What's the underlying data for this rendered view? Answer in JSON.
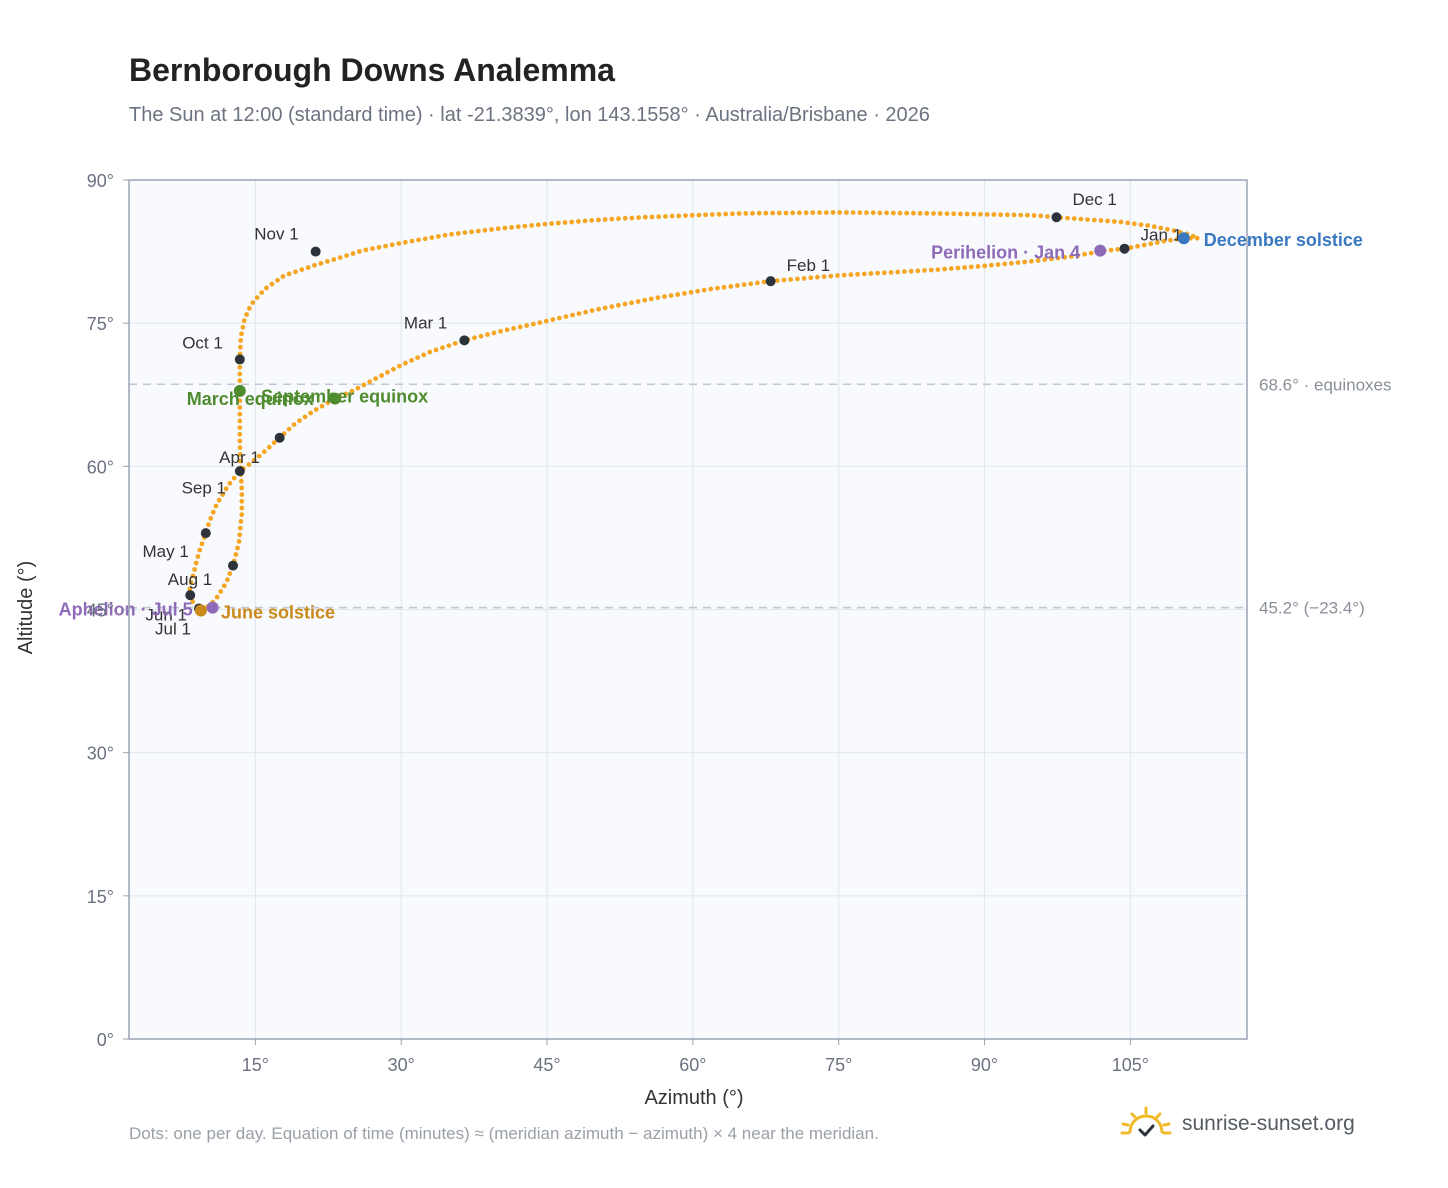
{
  "title": "Bernborough Downs Analemma",
  "subtitle": "The Sun at 12:00 (standard time) · lat -21.3839°, lon 143.1558° · Australia/Brisbane · 2026",
  "footnote": "Dots: one per day. Equation of time (minutes) ≈ (meridian azimuth − azimuth) × 4 near the meridian.",
  "brand": {
    "text": "sunrise-sunset.org",
    "icon": "sun-check-icon",
    "color": "#f0b928"
  },
  "colors": {
    "path": "#f5a623",
    "month_marker": "#2d333b",
    "equinox": "#4e8c2f",
    "june_solstice": "#c98a1a",
    "december_solstice": "#3a78c0",
    "apsis": "#8e6bb8",
    "grid": "#e3e8ee",
    "plot_bg": "#f8fafd",
    "frame": "#9aa5b3",
    "reference_line": "#c0c7d2"
  },
  "chart_data": {
    "type": "scatter",
    "title": "Bernborough Downs Analemma",
    "xlabel": "Azimuth (°)",
    "ylabel": "Altitude (°)",
    "xlim": [
      2,
      117
    ],
    "ylim": [
      0,
      90
    ],
    "x_ticks": [
      15,
      30,
      45,
      60,
      75,
      90,
      105
    ],
    "x_tick_labels": [
      "15°",
      "30°",
      "45°",
      "60°",
      "75°",
      "90°",
      "105°"
    ],
    "y_ticks": [
      0,
      15,
      30,
      45,
      60,
      75,
      90
    ],
    "y_tick_labels": [
      "0°",
      "15°",
      "30°",
      "45°",
      "60°",
      "75°",
      "90°"
    ],
    "grid": true,
    "reference_lines": [
      {
        "altitude": 68.6,
        "label": "68.6° · equinoxes"
      },
      {
        "altitude": 45.2,
        "label": "45.2° (−23.4°)"
      }
    ],
    "path_points": [
      [
        110.5,
        83.9
      ],
      [
        108.5,
        83.6
      ],
      [
        106.5,
        83.2
      ],
      [
        104.4,
        82.8
      ],
      [
        102.5,
        82.6
      ],
      [
        99.0,
        82.0
      ],
      [
        95.0,
        81.5
      ],
      [
        90.0,
        81.0
      ],
      [
        85.0,
        80.6
      ],
      [
        80.0,
        80.3
      ],
      [
        75.0,
        80.0
      ],
      [
        68.0,
        79.4
      ],
      [
        62.0,
        78.6
      ],
      [
        56.0,
        77.6
      ],
      [
        50.0,
        76.4
      ],
      [
        44.0,
        75.0
      ],
      [
        40.0,
        74.1
      ],
      [
        36.5,
        73.2
      ],
      [
        33.0,
        72.0
      ],
      [
        30.0,
        70.6
      ],
      [
        27.0,
        69.0
      ],
      [
        25.0,
        67.9
      ],
      [
        23.2,
        67.1
      ],
      [
        21.0,
        65.8
      ],
      [
        19.0,
        64.4
      ],
      [
        17.5,
        63.0
      ],
      [
        16.0,
        61.6
      ],
      [
        14.5,
        60.3
      ],
      [
        13.4,
        59.5
      ],
      [
        12.2,
        58.0
      ],
      [
        11.0,
        56.0
      ],
      [
        10.3,
        54.3
      ],
      [
        9.9,
        53.0
      ],
      [
        9.2,
        51.0
      ],
      [
        8.7,
        49.0
      ],
      [
        8.3,
        47.5
      ],
      [
        8.2,
        46.5
      ],
      [
        8.6,
        45.7
      ],
      [
        9.2,
        45.1
      ],
      [
        9.4,
        44.9
      ],
      [
        9.6,
        45.0
      ],
      [
        10.4,
        45.5
      ],
      [
        11.0,
        46.2
      ],
      [
        12.0,
        47.8
      ],
      [
        12.7,
        49.6
      ],
      [
        13.3,
        52.0
      ],
      [
        13.6,
        55.0
      ],
      [
        13.6,
        57.5
      ],
      [
        13.5,
        59.5
      ],
      [
        13.4,
        62.5
      ],
      [
        13.4,
        65.0
      ],
      [
        13.4,
        67.9
      ],
      [
        13.4,
        69.5
      ],
      [
        13.4,
        71.2
      ],
      [
        13.5,
        73.5
      ],
      [
        13.9,
        75.5
      ],
      [
        14.6,
        77.0
      ],
      [
        16.0,
        78.6
      ],
      [
        18.0,
        80.0
      ],
      [
        21.2,
        81.1
      ],
      [
        23.5,
        81.8
      ],
      [
        26.0,
        82.6
      ],
      [
        30.0,
        83.4
      ],
      [
        35.0,
        84.3
      ],
      [
        40.0,
        84.9
      ],
      [
        45.0,
        85.4
      ],
      [
        50.0,
        85.8
      ],
      [
        55.0,
        86.1
      ],
      [
        60.0,
        86.3
      ],
      [
        65.0,
        86.5
      ],
      [
        70.0,
        86.55
      ],
      [
        75.0,
        86.6
      ],
      [
        80.0,
        86.55
      ],
      [
        85.0,
        86.5
      ],
      [
        90.0,
        86.4
      ],
      [
        95.0,
        86.3
      ],
      [
        97.4,
        86.1
      ],
      [
        100.0,
        85.9
      ],
      [
        104.0,
        85.6
      ],
      [
        107.0,
        85.2
      ],
      [
        109.5,
        84.7
      ],
      [
        111.0,
        84.3
      ],
      [
        112.0,
        83.9
      ],
      [
        110.5,
        83.9
      ]
    ],
    "month_markers": [
      {
        "label": "Jan 1",
        "azimuth": 104.4,
        "altitude": 82.8
      },
      {
        "label": "Feb 1",
        "azimuth": 68.0,
        "altitude": 79.4
      },
      {
        "label": "Mar 1",
        "azimuth": 36.5,
        "altitude": 73.2
      },
      {
        "label": "Apr 1",
        "azimuth": 13.4,
        "altitude": 59.5
      },
      {
        "label": "May 1",
        "azimuth": 9.9,
        "altitude": 53.0
      },
      {
        "label": "Jun 1",
        "azimuth": 9.2,
        "altitude": 45.1
      },
      {
        "label": "Jul 1",
        "azimuth": 9.4,
        "altitude": 44.9
      },
      {
        "label": "Aug 1",
        "azimuth": 8.3,
        "altitude": 46.5
      },
      {
        "label": "Sep 1",
        "azimuth": 12.7,
        "altitude": 49.6
      },
      {
        "label": "Oct 1",
        "azimuth": 13.4,
        "altitude": 71.2
      },
      {
        "label": "Nov 1",
        "azimuth": 21.2,
        "altitude": 82.5
      },
      {
        "label": "Dec 1",
        "azimuth": 97.4,
        "altitude": 86.1
      },
      {
        "label": "",
        "azimuth": 17.5,
        "altitude": 63.0
      }
    ],
    "events": [
      {
        "label": "December solstice",
        "azimuth": 110.5,
        "altitude": 83.9,
        "kind": "december_solstice"
      },
      {
        "label": "Perihelion · Jan 4",
        "azimuth": 101.9,
        "altitude": 82.6,
        "kind": "apsis"
      },
      {
        "label": "March equinox",
        "azimuth": 13.4,
        "altitude": 67.9,
        "kind": "equinox"
      },
      {
        "label": "September equinox",
        "azimuth": 23.2,
        "altitude": 67.1,
        "kind": "equinox"
      },
      {
        "label": "June solstice",
        "azimuth": 9.4,
        "altitude": 44.9,
        "kind": "june_solstice"
      },
      {
        "label": "Aphelion · Jul 5",
        "azimuth": 10.6,
        "altitude": 45.2,
        "kind": "apsis"
      }
    ]
  }
}
